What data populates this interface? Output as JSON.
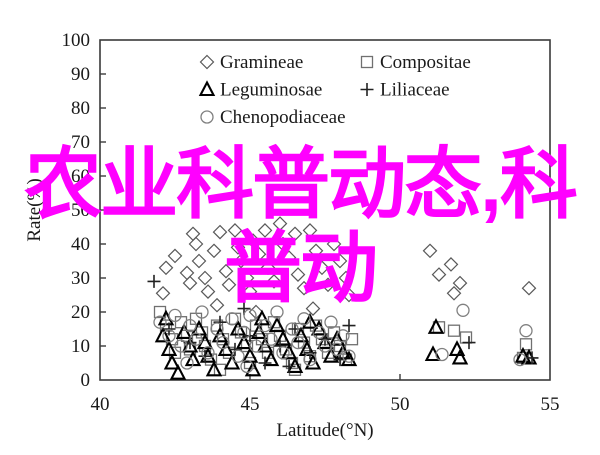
{
  "watermark": {
    "text": "农业科普动态,科普动",
    "color": "#FF00FF"
  },
  "chart_data": {
    "type": "scatter",
    "title": "",
    "xlabel": "Latitude(°N)",
    "ylabel": "Rate(%)",
    "xlim": [
      40,
      55
    ],
    "ylim": [
      0,
      100
    ],
    "xticks": [
      40,
      45,
      50,
      55
    ],
    "yticks": [
      0,
      10,
      20,
      30,
      40,
      50,
      60,
      70,
      80,
      90,
      100
    ],
    "grid": false,
    "legend_position": "inside-top",
    "legend_columns": [
      [
        "Gramineae",
        "Leguminosae",
        "Chenopodiaceae"
      ],
      [
        "Compositae",
        "Liliaceae"
      ]
    ],
    "axis_color": "#3a3a3a",
    "series": [
      {
        "name": "Gramineae",
        "marker": "diamond",
        "color": "#595959",
        "points": [
          [
            42.1,
            25.5
          ],
          [
            42.2,
            33
          ],
          [
            42.5,
            36.5
          ],
          [
            42.9,
            31.5
          ],
          [
            43.0,
            28.5
          ],
          [
            43.1,
            43
          ],
          [
            43.2,
            40
          ],
          [
            43.3,
            35
          ],
          [
            43.5,
            30
          ],
          [
            43.6,
            26
          ],
          [
            43.8,
            38
          ],
          [
            43.9,
            22
          ],
          [
            44.0,
            43.5
          ],
          [
            44.2,
            32
          ],
          [
            44.3,
            28
          ],
          [
            44.5,
            44
          ],
          [
            44.6,
            39
          ],
          [
            44.7,
            35
          ],
          [
            44.9,
            30
          ],
          [
            45.0,
            26
          ],
          [
            45.1,
            41
          ],
          [
            45.2,
            20
          ],
          [
            45.3,
            37
          ],
          [
            45.5,
            44
          ],
          [
            45.6,
            33
          ],
          [
            45.8,
            29
          ],
          [
            46.0,
            46
          ],
          [
            46.1,
            40
          ],
          [
            46.3,
            36
          ],
          [
            46.5,
            43
          ],
          [
            46.6,
            31
          ],
          [
            46.8,
            27
          ],
          [
            47.0,
            44
          ],
          [
            47.1,
            21
          ],
          [
            47.2,
            38
          ],
          [
            47.4,
            33
          ],
          [
            47.6,
            28
          ],
          [
            47.8,
            40
          ],
          [
            48.0,
            35
          ],
          [
            48.2,
            30
          ],
          [
            48.3,
            25
          ],
          [
            51.0,
            38
          ],
          [
            51.3,
            31
          ],
          [
            51.7,
            34
          ],
          [
            52.0,
            28.5
          ],
          [
            51.8,
            25.5
          ],
          [
            54.3,
            27
          ]
        ]
      },
      {
        "name": "Compositae",
        "marker": "square",
        "color": "#707070",
        "points": [
          [
            42.0,
            20
          ],
          [
            42.2,
            16
          ],
          [
            42.4,
            12
          ],
          [
            42.5,
            8
          ],
          [
            42.7,
            17
          ],
          [
            42.9,
            13
          ],
          [
            43.0,
            9
          ],
          [
            43.2,
            18
          ],
          [
            43.4,
            14
          ],
          [
            43.5,
            10
          ],
          [
            43.7,
            6
          ],
          [
            43.9,
            16
          ],
          [
            44.0,
            3
          ],
          [
            44.1,
            12
          ],
          [
            44.3,
            8
          ],
          [
            44.5,
            18
          ],
          [
            44.7,
            14
          ],
          [
            44.9,
            10
          ],
          [
            45.0,
            5
          ],
          [
            45.2,
            16
          ],
          [
            45.4,
            12
          ],
          [
            45.6,
            8
          ],
          [
            45.8,
            17
          ],
          [
            46.0,
            13
          ],
          [
            46.2,
            9
          ],
          [
            46.4,
            5
          ],
          [
            46.5,
            3
          ],
          [
            46.6,
            15
          ],
          [
            46.8,
            11
          ],
          [
            47.0,
            7
          ],
          [
            47.2,
            16
          ],
          [
            47.4,
            12
          ],
          [
            47.6,
            8
          ],
          [
            47.8,
            14
          ],
          [
            48.0,
            10
          ],
          [
            48.2,
            6
          ],
          [
            48.4,
            12
          ],
          [
            51.3,
            15.5
          ],
          [
            51.8,
            14.5
          ],
          [
            52.2,
            12.5
          ],
          [
            54.2,
            10.5
          ],
          [
            54.1,
            6.5
          ]
        ]
      },
      {
        "name": "Leguminosae",
        "marker": "triangle",
        "color": "#000000",
        "points": [
          [
            42.1,
            13
          ],
          [
            42.2,
            18
          ],
          [
            42.3,
            9
          ],
          [
            42.4,
            5
          ],
          [
            42.6,
            2
          ],
          [
            42.8,
            14
          ],
          [
            43.0,
            10
          ],
          [
            43.1,
            6
          ],
          [
            43.3,
            15
          ],
          [
            43.5,
            11
          ],
          [
            43.6,
            7
          ],
          [
            43.8,
            3
          ],
          [
            44.0,
            13
          ],
          [
            44.2,
            9
          ],
          [
            44.4,
            5
          ],
          [
            44.6,
            15
          ],
          [
            44.8,
            11
          ],
          [
            45.0,
            7
          ],
          [
            45.1,
            3
          ],
          [
            45.3,
            14
          ],
          [
            45.4,
            18
          ],
          [
            45.5,
            10
          ],
          [
            45.7,
            6
          ],
          [
            45.9,
            16
          ],
          [
            46.1,
            12
          ],
          [
            46.3,
            8
          ],
          [
            46.5,
            4
          ],
          [
            46.7,
            13
          ],
          [
            46.9,
            9
          ],
          [
            47.0,
            17
          ],
          [
            47.1,
            5
          ],
          [
            47.3,
            15
          ],
          [
            47.5,
            11
          ],
          [
            47.7,
            7
          ],
          [
            47.9,
            12
          ],
          [
            48.1,
            8
          ],
          [
            48.3,
            6
          ],
          [
            51.1,
            7.5
          ],
          [
            51.2,
            15.5
          ],
          [
            51.9,
            9
          ],
          [
            52.0,
            6.5
          ],
          [
            54.1,
            7
          ],
          [
            54.3,
            6.5
          ]
        ]
      },
      {
        "name": "Liliaceae",
        "marker": "plus",
        "color": "#222222",
        "points": [
          [
            41.8,
            29
          ],
          [
            42.3,
            15
          ],
          [
            43.0,
            11
          ],
          [
            43.5,
            7
          ],
          [
            44.0,
            17
          ],
          [
            44.5,
            9
          ],
          [
            44.8,
            21
          ],
          [
            45.0,
            13
          ],
          [
            45.5,
            5
          ],
          [
            46.0,
            10
          ],
          [
            46.3,
            4
          ],
          [
            46.5,
            15
          ],
          [
            47.0,
            8
          ],
          [
            47.5,
            12
          ],
          [
            48.0,
            6
          ],
          [
            48.3,
            16
          ],
          [
            52.3,
            11
          ],
          [
            54.4,
            6.5
          ]
        ]
      },
      {
        "name": "Chenopodiaceae",
        "marker": "circle",
        "color": "#808080",
        "points": [
          [
            42.0,
            17
          ],
          [
            42.3,
            13
          ],
          [
            42.5,
            19
          ],
          [
            42.7,
            10
          ],
          [
            42.9,
            5
          ],
          [
            43.0,
            16
          ],
          [
            43.2,
            12
          ],
          [
            43.4,
            20
          ],
          [
            43.6,
            8
          ],
          [
            43.9,
            15
          ],
          [
            44.1,
            11
          ],
          [
            44.4,
            18
          ],
          [
            44.6,
            7
          ],
          [
            44.8,
            14
          ],
          [
            44.9,
            4
          ],
          [
            45.0,
            19
          ],
          [
            45.2,
            10
          ],
          [
            45.5,
            16
          ],
          [
            45.7,
            12
          ],
          [
            45.9,
            20
          ],
          [
            46.1,
            8
          ],
          [
            46.4,
            15
          ],
          [
            46.6,
            11
          ],
          [
            46.8,
            18
          ],
          [
            47.0,
            6
          ],
          [
            47.3,
            14
          ],
          [
            47.5,
            10
          ],
          [
            47.7,
            17
          ],
          [
            47.9,
            9
          ],
          [
            48.1,
            13
          ],
          [
            48.3,
            7
          ],
          [
            51.4,
            7.5
          ],
          [
            52.1,
            20.5
          ],
          [
            54.0,
            6
          ],
          [
            54.2,
            14.5
          ]
        ]
      }
    ]
  }
}
